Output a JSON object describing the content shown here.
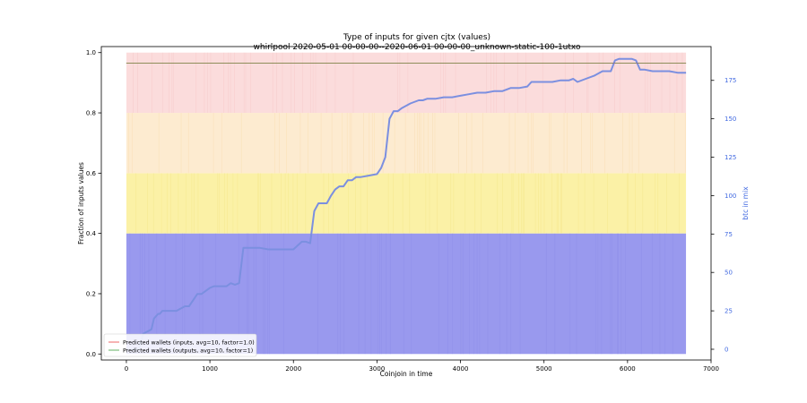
{
  "chart_data": {
    "type": "area",
    "title": "Type of inputs for given cjtx (values)",
    "subtitle": "whirlpool 2020-05-01 00-00-00--2020-06-01 00-00-00_unknown-static-100-1utxo",
    "xlabel": "Coinjoin in time",
    "ylabel": "Fraction of inputs values",
    "y2label": "btc in mix",
    "xlim": [
      -300,
      7000
    ],
    "ylim": [
      -0.02,
      1.02
    ],
    "y2lim": [
      -7,
      197
    ],
    "x_ticks": [
      0,
      1000,
      2000,
      3000,
      4000,
      5000,
      6000,
      7000
    ],
    "y_ticks": [
      0.0,
      0.2,
      0.4,
      0.6,
      0.8,
      1.0
    ],
    "y2_ticks": [
      0,
      25,
      50,
      75,
      100,
      125,
      150,
      175
    ],
    "x_tick_labels": [
      "0",
      "1000",
      "2000",
      "3000",
      "4000",
      "5000",
      "6000",
      "7000"
    ],
    "y_tick_labels": [
      "0.0",
      "0.2",
      "0.4",
      "0.6",
      "0.8",
      "1.0"
    ],
    "y2_tick_labels": [
      "0",
      "25",
      "50",
      "75",
      "100",
      "125",
      "150",
      "175"
    ],
    "stacked_bands": [
      {
        "name": "band-1",
        "from": 0.0,
        "to": 0.4,
        "color": "#9999ee"
      },
      {
        "name": "band-2",
        "from": 0.4,
        "to": 0.6,
        "color": "#fbf1a6"
      },
      {
        "name": "band-3",
        "from": 0.6,
        "to": 0.8,
        "color": "#fdebd0"
      },
      {
        "name": "band-4",
        "from": 0.8,
        "to": 1.0,
        "color": "#fbdcdc"
      }
    ],
    "band_x_range": [
      0,
      6700
    ],
    "series": [
      {
        "name": "Predicted wallets (inputs, avg=10, factor=1.0)",
        "color": "#f08080",
        "axis": "left",
        "x": [
          0,
          6700
        ],
        "values": [
          0.965,
          0.965
        ]
      },
      {
        "name": "Predicted wallets (outputs, avg=10, factor=1)",
        "color": "#7fbf7f",
        "axis": "left",
        "x": [
          0,
          6700
        ],
        "values": [
          0.965,
          0.965
        ]
      },
      {
        "name": "btc in mix",
        "color": "#7b8fe0",
        "axis": "right",
        "x": [
          0,
          150,
          200,
          300,
          330,
          380,
          400,
          430,
          500,
          600,
          700,
          750,
          800,
          850,
          900,
          1000,
          1050,
          1100,
          1200,
          1250,
          1300,
          1350,
          1400,
          1500,
          1600,
          1700,
          1800,
          1900,
          2000,
          2100,
          2150,
          2200,
          2250,
          2300,
          2400,
          2450,
          2500,
          2550,
          2600,
          2650,
          2700,
          2750,
          2800,
          2900,
          3000,
          3050,
          3100,
          3150,
          3200,
          3250,
          3300,
          3400,
          3500,
          3550,
          3600,
          3700,
          3800,
          3900,
          4000,
          4100,
          4200,
          4300,
          4400,
          4500,
          4600,
          4700,
          4800,
          4850,
          4900,
          5000,
          5100,
          5200,
          5300,
          5350,
          5400,
          5500,
          5600,
          5700,
          5800,
          5850,
          5900,
          6000,
          6050,
          6100,
          6150,
          6200,
          6300,
          6400,
          6500,
          6600,
          6650,
          6700
        ],
        "values": [
          0,
          0,
          10,
          13,
          20,
          23,
          23,
          25,
          25,
          25,
          28,
          28,
          32,
          36,
          36,
          40,
          41,
          41,
          41,
          43,
          42,
          43,
          66,
          66,
          66,
          65,
          65,
          65,
          65,
          70,
          70,
          69,
          90,
          95,
          95,
          100,
          104,
          106,
          106,
          110,
          110,
          112,
          112,
          113,
          114,
          118,
          125,
          150,
          155,
          155,
          157,
          160,
          162,
          162,
          163,
          163,
          164,
          164,
          165,
          166,
          167,
          167,
          168,
          168,
          170,
          170,
          171,
          174,
          174,
          174,
          174,
          175,
          175,
          176,
          174,
          176,
          178,
          181,
          181,
          188,
          189,
          189,
          189,
          188,
          182,
          182,
          181,
          181,
          181,
          180,
          180,
          180
        ]
      }
    ],
    "legend": {
      "position": "bottom-left"
    }
  }
}
